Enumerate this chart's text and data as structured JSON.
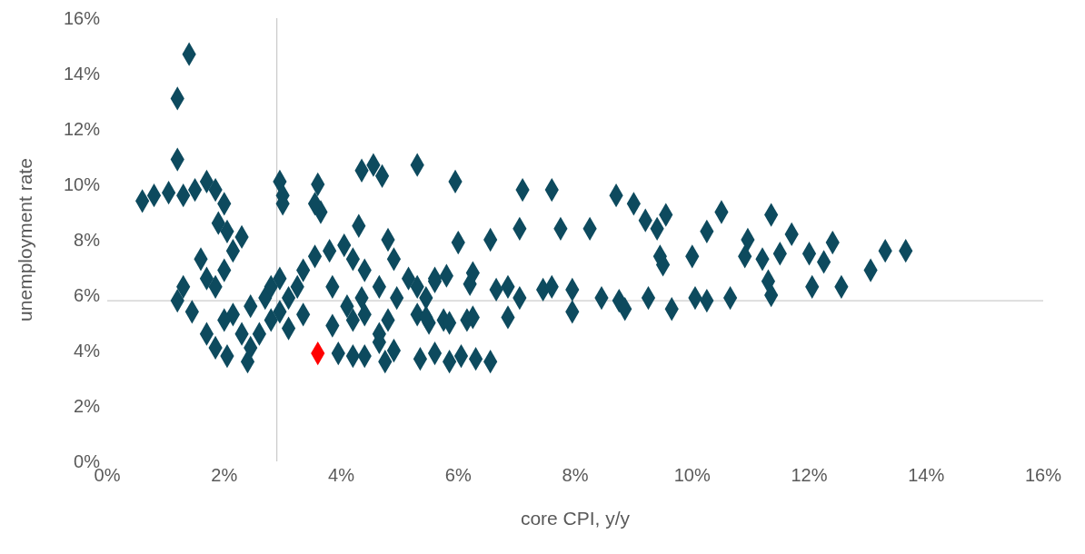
{
  "chart_data": {
    "type": "scatter",
    "xlabel": "core CPI, y/y",
    "ylabel": "unemployment rate",
    "marker": "diamond",
    "legend": false,
    "grid": false,
    "xlim": [
      0,
      16
    ],
    "ylim": [
      0,
      16
    ],
    "xticks": [
      {
        "value": 0,
        "label": "0%"
      },
      {
        "value": 2,
        "label": "2%"
      },
      {
        "value": 4,
        "label": "4%"
      },
      {
        "value": 6,
        "label": "6%"
      },
      {
        "value": 8,
        "label": "8%"
      },
      {
        "value": 10,
        "label": "10%"
      },
      {
        "value": 12,
        "label": "12%"
      },
      {
        "value": 14,
        "label": "14%"
      },
      {
        "value": 16,
        "label": "16%"
      }
    ],
    "yticks": [
      {
        "value": 0,
        "label": "0%"
      },
      {
        "value": 2,
        "label": "2%"
      },
      {
        "value": 4,
        "label": "4%"
      },
      {
        "value": 6,
        "label": "6%"
      },
      {
        "value": 8,
        "label": "8%"
      },
      {
        "value": 10,
        "label": "10%"
      },
      {
        "value": 12,
        "label": "12%"
      },
      {
        "value": 14,
        "label": "14%"
      },
      {
        "value": 16,
        "label": "16%"
      }
    ],
    "ref_lines": [
      {
        "axis": "x",
        "value": 2.9,
        "color": "#bfbfbf"
      },
      {
        "axis": "y",
        "value": 5.8,
        "color": "#bfbfbf"
      }
    ],
    "series": [
      {
        "color": "#0d4a5e",
        "x": [
          1.4,
          1.2,
          1.2,
          0.6,
          0.8,
          1.05,
          1.3,
          1.5,
          1.7,
          1.85,
          2.0,
          1.9,
          2.05,
          2.3,
          2.15,
          2.0,
          1.85,
          1.7,
          1.6,
          1.2,
          1.3,
          1.45,
          1.7,
          1.85,
          2.05,
          2.4,
          2.45,
          2.6,
          2.8,
          2.95,
          3.1,
          3.25,
          3.35,
          3.55,
          3.8,
          2.15,
          2.45,
          2.7,
          2.3,
          2.0,
          2.95,
          2.8,
          2.95,
          3.0,
          3.0,
          3.6,
          3.65,
          3.55,
          4.35,
          4.55,
          4.7,
          5.3,
          5.95,
          4.3,
          4.05,
          4.2,
          4.4,
          4.8,
          4.9,
          5.15,
          3.85,
          4.1,
          4.35,
          4.65,
          4.95,
          5.3,
          5.45,
          5.6,
          3.85,
          4.2,
          4.4,
          4.65,
          4.8,
          5.3,
          5.5,
          5.75,
          6.15,
          5.35,
          5.6,
          5.85,
          6.05,
          6.3,
          6.55,
          4.2,
          3.95,
          4.4,
          4.75,
          4.9,
          4.65,
          7.1,
          7.6,
          7.75,
          8.25,
          6.85,
          7.45,
          7.95,
          7.95,
          8.45,
          6.25,
          5.85,
          5.45,
          6.0,
          6.55,
          7.05,
          6.2,
          6.65,
          7.05,
          5.8,
          5.6,
          8.7,
          9.0,
          9.2,
          9.55,
          9.4,
          10.5,
          10.25,
          10.0,
          9.45,
          9.5,
          11.35,
          11.7,
          10.95,
          10.9,
          11.2,
          11.5,
          12.0,
          12.4,
          12.25,
          11.3,
          11.35,
          12.05,
          12.55,
          13.05,
          13.3,
          13.65,
          8.75,
          8.85,
          9.25,
          9.65,
          10.05,
          10.25,
          10.65,
          7.6,
          6.85,
          6.25,
          3.35,
          3.1
        ],
        "values": [
          14.7,
          13.1,
          10.9,
          9.4,
          9.6,
          9.7,
          9.6,
          9.8,
          10.1,
          9.8,
          9.3,
          8.6,
          8.3,
          8.1,
          7.6,
          6.9,
          6.3,
          6.6,
          7.3,
          5.8,
          6.3,
          5.4,
          4.6,
          4.1,
          3.8,
          3.6,
          4.1,
          4.6,
          5.1,
          5.4,
          5.9,
          6.3,
          6.9,
          7.4,
          7.6,
          5.3,
          5.6,
          5.9,
          4.6,
          5.1,
          6.6,
          6.3,
          10.1,
          9.6,
          9.3,
          10.0,
          9.0,
          9.3,
          10.5,
          10.7,
          10.3,
          10.7,
          10.1,
          8.5,
          7.8,
          7.3,
          6.9,
          8.0,
          7.3,
          6.6,
          6.3,
          5.6,
          5.9,
          6.3,
          5.9,
          6.3,
          5.9,
          6.6,
          4.9,
          5.1,
          5.3,
          4.6,
          5.1,
          5.3,
          5.0,
          5.1,
          5.1,
          3.7,
          3.9,
          3.6,
          3.8,
          3.7,
          3.6,
          3.8,
          3.9,
          3.8,
          3.6,
          4.0,
          4.3,
          9.8,
          9.8,
          8.4,
          8.4,
          5.2,
          6.2,
          6.2,
          5.4,
          5.9,
          5.2,
          5.0,
          5.2,
          7.9,
          8.0,
          8.4,
          6.4,
          6.2,
          5.9,
          6.7,
          6.5,
          9.6,
          9.3,
          8.7,
          8.9,
          8.4,
          9.0,
          8.3,
          7.4,
          7.4,
          7.1,
          8.9,
          8.2,
          8.0,
          7.4,
          7.3,
          7.5,
          7.5,
          7.9,
          7.2,
          6.5,
          6.0,
          6.3,
          6.3,
          6.9,
          7.6,
          7.6,
          5.8,
          5.5,
          5.9,
          5.5,
          5.9,
          5.8,
          5.9,
          6.3,
          6.3,
          6.8,
          5.3,
          4.8
        ]
      },
      {
        "color": "#ff0000",
        "x": [
          3.6
        ],
        "values": [
          3.9
        ]
      }
    ]
  }
}
